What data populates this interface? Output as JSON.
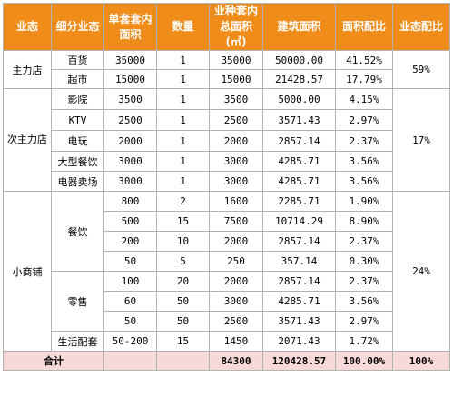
{
  "headers": [
    "业态",
    "细分业态",
    "单套套内面积",
    "数量",
    "业种套内总面积(㎡)",
    "建筑面积",
    "面积配比",
    "业态配比"
  ],
  "groups": {
    "main": "主力店",
    "secondary": "次主力店",
    "small": "小商铺"
  },
  "rows": [
    {
      "sub": "百货",
      "unit": "35000",
      "qty": "1",
      "total": "35000",
      "gross": "50000.00",
      "ratio": "41.52%"
    },
    {
      "sub": "超市",
      "unit": "15000",
      "qty": "1",
      "total": "15000",
      "gross": "21428.57",
      "ratio": "17.79%"
    },
    {
      "sub": "影院",
      "unit": "3500",
      "qty": "1",
      "total": "3500",
      "gross": "5000.00",
      "ratio": "4.15%"
    },
    {
      "sub": "KTV",
      "unit": "2500",
      "qty": "1",
      "total": "2500",
      "gross": "3571.43",
      "ratio": "2.97%"
    },
    {
      "sub": "电玩",
      "unit": "2000",
      "qty": "1",
      "total": "2000",
      "gross": "2857.14",
      "ratio": "2.37%"
    },
    {
      "sub": "大型餐饮",
      "unit": "3000",
      "qty": "1",
      "total": "3000",
      "gross": "4285.71",
      "ratio": "3.56%"
    },
    {
      "sub": "电器卖场",
      "unit": "3000",
      "qty": "1",
      "total": "3000",
      "gross": "4285.71",
      "ratio": "3.56%"
    },
    {
      "sub": "餐饮",
      "unit": "800",
      "qty": "2",
      "total": "1600",
      "gross": "2285.71",
      "ratio": "1.90%"
    },
    {
      "sub": "",
      "unit": "500",
      "qty": "15",
      "total": "7500",
      "gross": "10714.29",
      "ratio": "8.90%"
    },
    {
      "sub": "",
      "unit": "200",
      "qty": "10",
      "total": "2000",
      "gross": "2857.14",
      "ratio": "2.37%"
    },
    {
      "sub": "",
      "unit": "50",
      "qty": "5",
      "total": "250",
      "gross": "357.14",
      "ratio": "0.30%"
    },
    {
      "sub": "零售",
      "unit": "100",
      "qty": "20",
      "total": "2000",
      "gross": "2857.14",
      "ratio": "2.37%"
    },
    {
      "sub": "",
      "unit": "60",
      "qty": "50",
      "total": "3000",
      "gross": "4285.71",
      "ratio": "3.56%"
    },
    {
      "sub": "",
      "unit": "50",
      "qty": "50",
      "total": "2500",
      "gross": "3571.43",
      "ratio": "2.97%"
    },
    {
      "sub": "生活配套",
      "unit": "50-200",
      "qty": "15",
      "total": "1450",
      "gross": "2071.43",
      "ratio": "1.72%"
    }
  ],
  "group_ratios": {
    "main": "59%",
    "secondary": "17%",
    "small": "24%"
  },
  "total": {
    "label": "合计",
    "total": "84300",
    "gross": "120428.57",
    "ratio": "100.00%",
    "type_ratio": "100%"
  },
  "colors": {
    "header_bg": "#f08c1a",
    "header_text": "#ffffff",
    "total_bg": "#f7d9d9",
    "border": "#b3b3b3"
  }
}
